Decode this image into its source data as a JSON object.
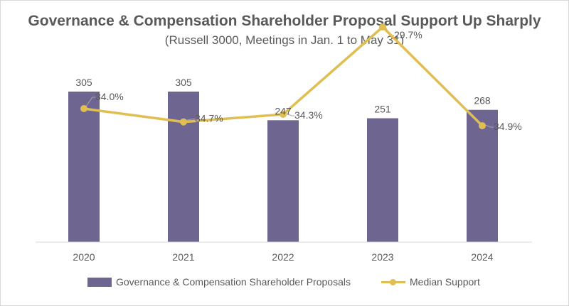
{
  "chart_data": {
    "type": "bar",
    "title": "Governance & Compensation Shareholder Proposal Support Up Sharply",
    "subtitle": "(Russell 3000, Meetings in Jan. 1 to May 31)",
    "categories": [
      "2020",
      "2021",
      "2022",
      "2023",
      "2024"
    ],
    "series": [
      {
        "name": "Governance & Compensation Shareholder Proposals",
        "type": "bar",
        "values": [
          305,
          305,
          247,
          251,
          268
        ],
        "labels": [
          "305",
          "305",
          "247",
          "251",
          "268"
        ],
        "color": "#6e6690"
      },
      {
        "name": "Median Support",
        "type": "line",
        "values": [
          34.0,
          34.7,
          34.3,
          29.7,
          34.9
        ],
        "labels": [
          "34.0%",
          "34.7%",
          "34.3%",
          "29.7%",
          "34.9%"
        ],
        "color": "#e0be52"
      }
    ],
    "legend_position": "bottom",
    "grid": false
  }
}
